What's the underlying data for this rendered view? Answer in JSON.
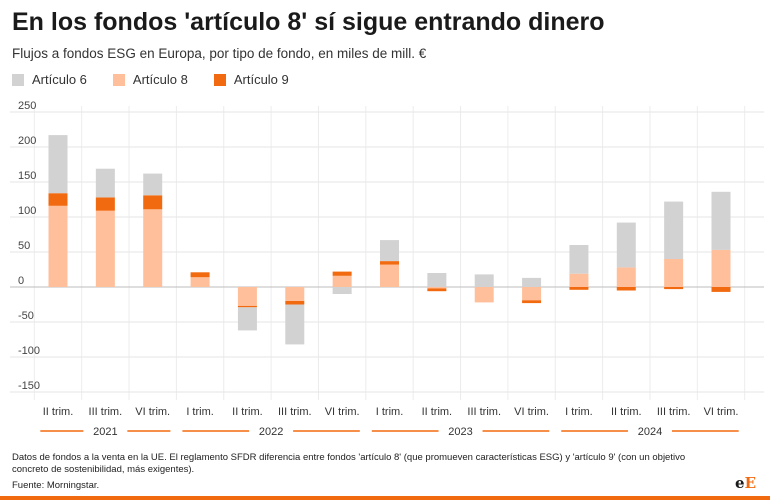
{
  "header": {
    "title": "En los fondos 'artículo 8' sí sigue entrando dinero",
    "subtitle": "Flujos a fondos ESG en Europa, por tipo de fondo, en miles de mill. €"
  },
  "legend": [
    {
      "label": "Artículo 6",
      "color": "#d2d2d2"
    },
    {
      "label": "Artículo 8",
      "color": "#ffbf9b"
    },
    {
      "label": "Artículo 9",
      "color": "#f26a0f"
    }
  ],
  "footnote": "Datos de fondos a la venta en la UE. El reglamento SFDR diferencia entre fondos 'artículo 8' (que promueven características ESG) y 'artículo 9' (con un objetivo concreto de sostenibilidad, más exigentes).",
  "source": "Fuente: Morningstar.",
  "logo": {
    "main": "e",
    "accent": "E"
  },
  "chart_data": {
    "type": "bar",
    "stacked": true,
    "ylim": [
      -150,
      250
    ],
    "yticks": [
      -150,
      -100,
      -50,
      0,
      50,
      100,
      150,
      200,
      250
    ],
    "categories": [
      "II trim.",
      "III trim.",
      "VI trim.",
      "I trim.",
      "II trim.",
      "III trim.",
      "VI trim.",
      "I trim.",
      "II trim.",
      "III trim.",
      "VI trim.",
      "I trim.",
      "II trim.",
      "III trim.",
      "VI trim."
    ],
    "year_groups": [
      {
        "label": "2021",
        "start": 0,
        "end": 2
      },
      {
        "label": "2022",
        "start": 3,
        "end": 6
      },
      {
        "label": "2023",
        "start": 7,
        "end": 10
      },
      {
        "label": "2024",
        "start": 11,
        "end": 14
      }
    ],
    "series": [
      {
        "name": "Artículo 8",
        "color": "#ffbf9b",
        "values": [
          116,
          109,
          111,
          14,
          -27,
          -20,
          16,
          32,
          -2,
          -22,
          -19,
          19,
          28,
          40,
          53
        ]
      },
      {
        "name": "Artículo 9",
        "color": "#f26a0f",
        "values": [
          18,
          19,
          20,
          7,
          -2,
          -5,
          6,
          5,
          -4,
          0,
          -4,
          -4,
          -5,
          -3,
          -7
        ]
      },
      {
        "name": "Artículo 6",
        "color": "#d2d2d2",
        "values": [
          83,
          41,
          31,
          0,
          -33,
          -57,
          -10,
          30,
          20,
          18,
          13,
          41,
          64,
          82,
          83
        ]
      }
    ]
  }
}
